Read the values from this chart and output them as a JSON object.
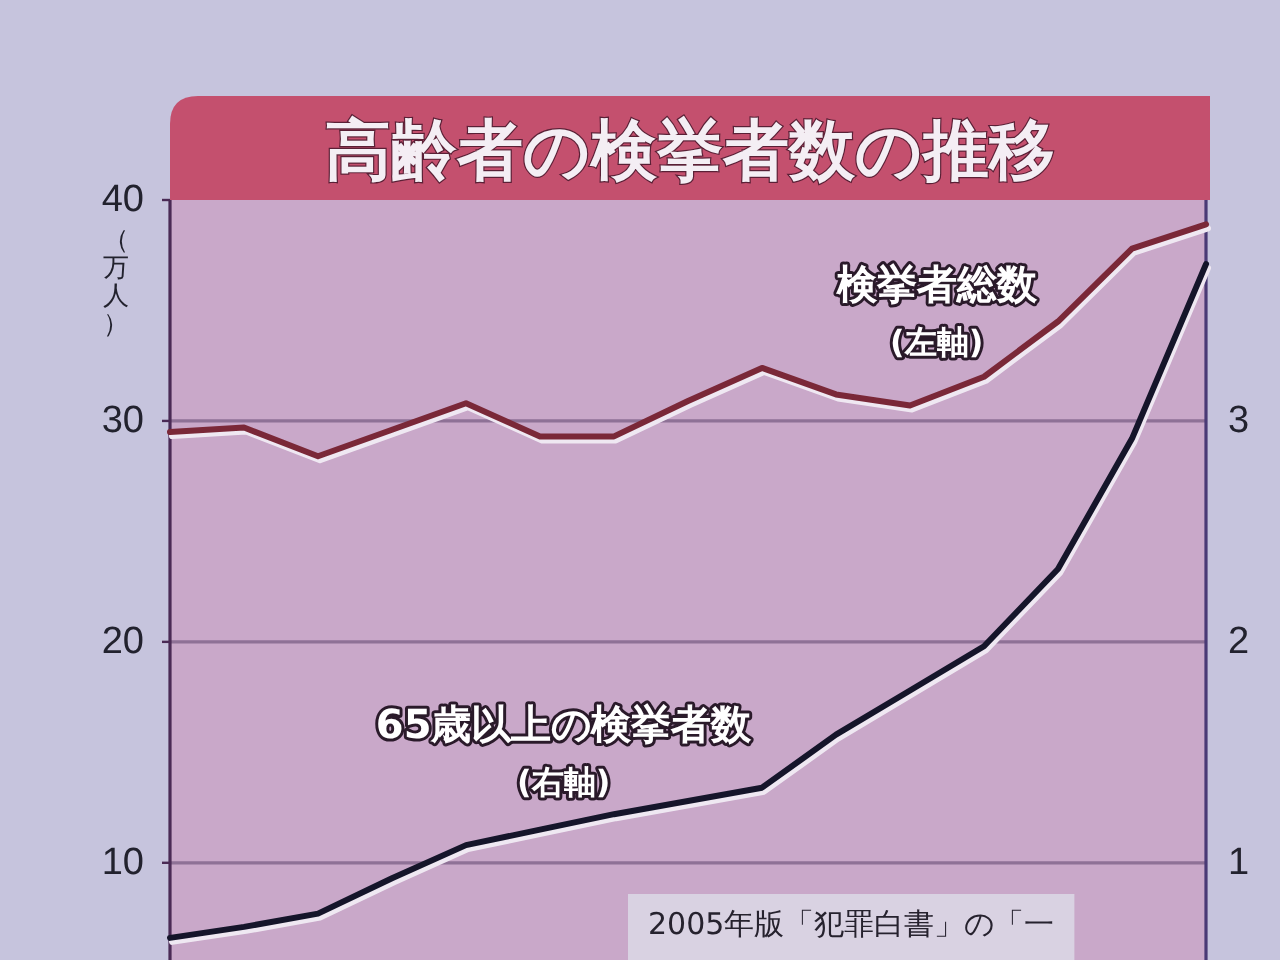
{
  "chart_data": {
    "type": "line",
    "title": "高齢者の検挙者数の推移",
    "ylabel": "（万人）",
    "categories": [
      null,
      null,
      null,
      null,
      null,
      null,
      null,
      null,
      null,
      null,
      null,
      null,
      null,
      null,
      null
    ],
    "series": [
      {
        "name": "検挙者総数\n(左軸)",
        "color": "#7a2838",
        "values": [
          29.5,
          29.7,
          28.4,
          29.6,
          30.8,
          29.3,
          29.3,
          30.9,
          32.4,
          31.2,
          30.7,
          32.0,
          34.5,
          37.8,
          38.9
        ]
      },
      {
        "name": "65歳以上の検挙者数\n(右軸)",
        "color": "#15152a",
        "axis": "y2",
        "values": [
          0.66,
          0.71,
          0.77,
          0.93,
          1.08,
          1.15,
          1.22,
          1.28,
          1.34,
          1.58,
          1.78,
          1.98,
          2.33,
          2.92,
          3.71
        ]
      }
    ],
    "ylim": [
      5.6,
      40
    ],
    "yticks": [
      10,
      20,
      30,
      40
    ],
    "y2lim": [
      0.56,
      4.0
    ],
    "y2ticks": [
      1,
      2,
      3
    ],
    "grid": "y",
    "annotations": [
      "2005年版「犯罪白書」の「一"
    ]
  }
}
